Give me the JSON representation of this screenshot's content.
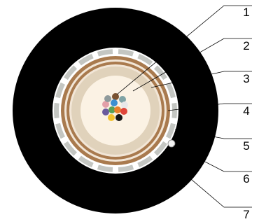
{
  "callouts": [
    {
      "id": "1",
      "label": "1"
    },
    {
      "id": "2",
      "label": "2"
    },
    {
      "id": "3",
      "label": "3"
    },
    {
      "id": "4",
      "label": "4"
    },
    {
      "id": "5",
      "label": "5"
    },
    {
      "id": "6",
      "label": "6"
    },
    {
      "id": "7",
      "label": "7"
    }
  ],
  "colors": {
    "outer_sheath": "#000000",
    "armor_segments": "#c4c6c2",
    "armor_gap": "#ffffff",
    "copper_ring": "#a97a4e",
    "ring_gap": "#f2e6d7",
    "filler": "#e0d2bb",
    "core_center": "#fbf2e4",
    "ripcord": "#f2f2f2"
  },
  "fiber_colors": [
    "#7a5230",
    "#7fa3a5",
    "#3b8fd0",
    "#e3a0a8",
    "#e8e8e8",
    "#8f9a9b",
    "#6a5a9c",
    "#5aa055",
    "#e8802a",
    "#e0463a",
    "#f2c12e",
    "#151515"
  ]
}
